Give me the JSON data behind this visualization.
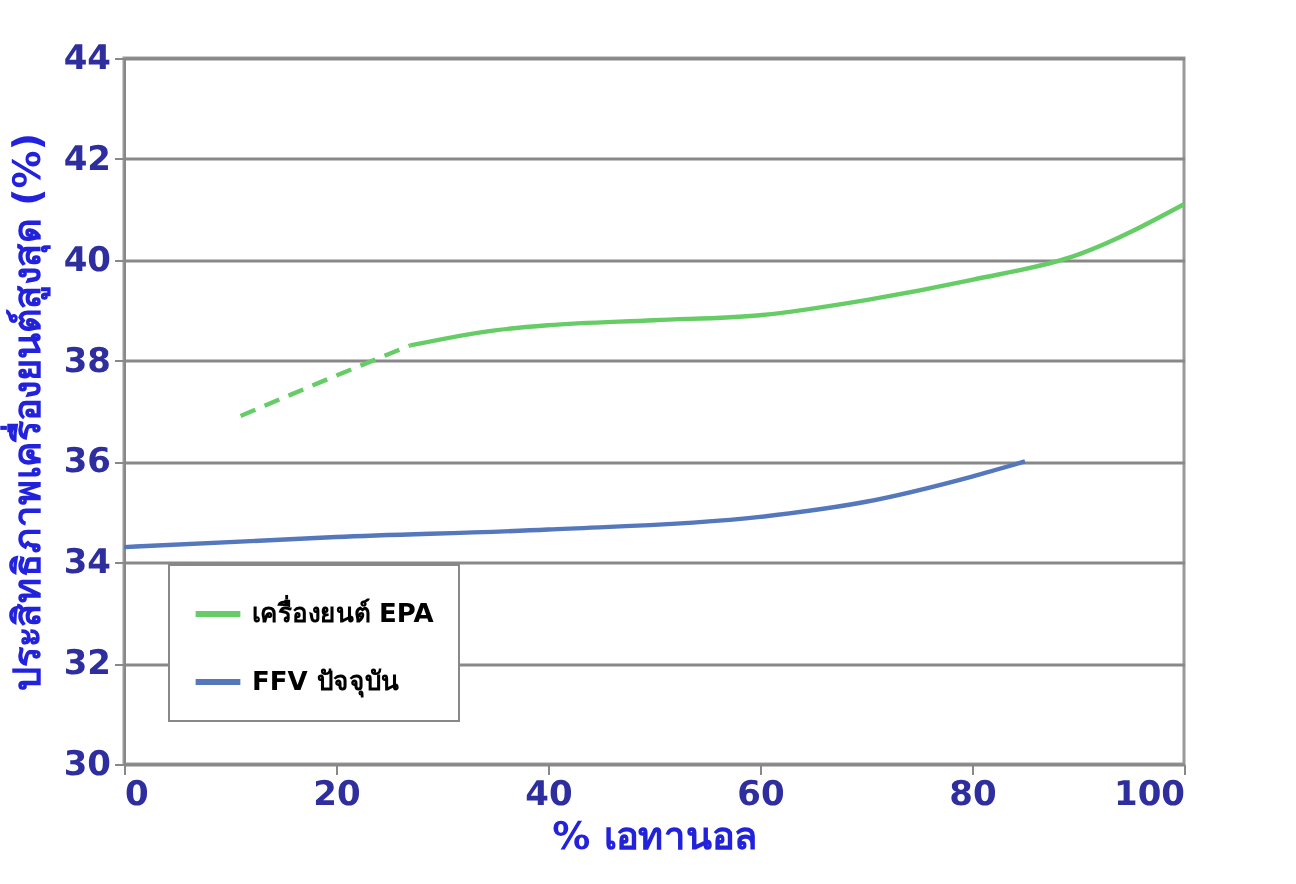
{
  "chart_data": {
    "type": "line",
    "xlabel": "% เอทานอล",
    "ylabel": "ประสิทธิภาพเครื่องยนต์สูงสุด (%)",
    "xlim": [
      0,
      100
    ],
    "xticks": [
      0,
      20,
      40,
      60,
      80,
      100
    ],
    "ylim": [
      30,
      44
    ],
    "yticks": [
      30,
      32,
      34,
      36,
      38,
      40,
      42,
      44
    ],
    "grid": "y",
    "legend": "bottom left",
    "marker": "none",
    "series": [
      {
        "color": "#66cc66",
        "line_style": "dashed",
        "x": [
          11,
          20,
          27
        ],
        "values": [
          36.9,
          37.7,
          38.3
        ]
      },
      {
        "name": "เครื่องยนต์ EPA",
        "color": "#66cc66",
        "line_style": "solid",
        "x": [
          27,
          35,
          40,
          50,
          60,
          70,
          80,
          90,
          100
        ],
        "values": [
          38.3,
          38.6,
          38.7,
          38.8,
          38.9,
          39.2,
          39.6,
          40.1,
          41.1
        ]
      },
      {
        "name": "FFV ปัจจุบัน",
        "color": "#5577bb",
        "line_style": "solid",
        "x": [
          0,
          20,
          40,
          60,
          70,
          80,
          85
        ],
        "values": [
          34.3,
          34.5,
          34.65,
          34.9,
          35.2,
          35.7,
          36.0
        ]
      }
    ]
  }
}
